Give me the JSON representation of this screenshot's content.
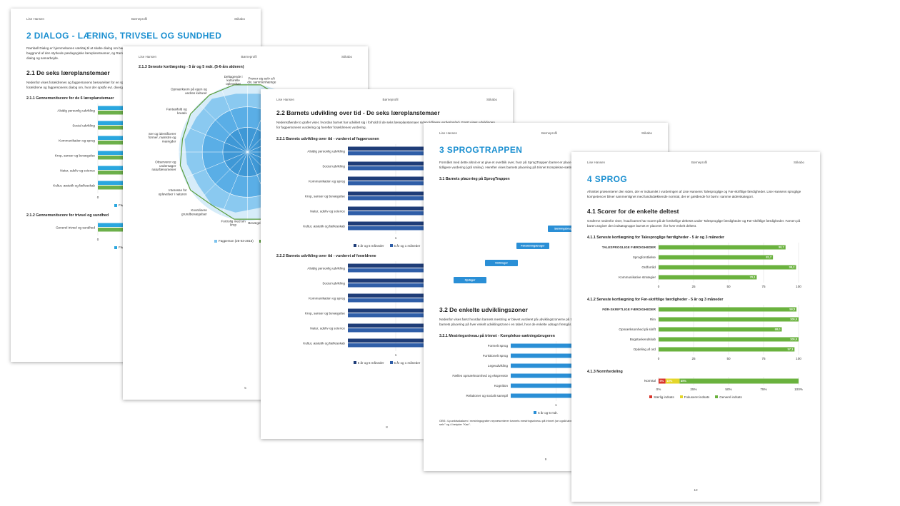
{
  "pages": [
    {
      "header": [
        "Lise Hansen",
        "Børneprofil",
        "Stikabo"
      ],
      "blocks": [
        {
          "type": "h1",
          "text": "2 DIALOG - LÆRING, TRIVSEL OG SUNDHED"
        },
        {
          "type": "p",
          "text": "Rambøll Dialog er hjemmebanes værktøj til at skabe dialog om barnets trivsel, læring, udvikling og dannelse. Rambøll Dialog 2015 blevet revideret på baggrund af den styrkede pædagogiske læreplansteamer, og Rambøll har videreudviklet materialet til relationer for at sikre et bedre grundlag for dialog og samarbejde."
        },
        {
          "type": "h2",
          "text": "2.1 De seks læreplanstemaer"
        },
        {
          "type": "p",
          "text": "Nedenfor vises forældrenes og fagpersonens besvarelser for en spindelsvævsgraf, som viser, hvad der er svaret på de enkelte spørgsmål, således til forældrene og fagpersonens dialog om, hvor der opstår evt. divergerende vurderinger."
        },
        {
          "type": "h3",
          "text": "2.1.1 Gennemsnitscore for de 6 læreplanstemaer"
        },
        {
          "type": "hbar",
          "legend": true,
          "categories": [
            "Alsidig personlig udvikling",
            "Social udvikling",
            "Kommunikation og sprog",
            "Krop, sanser og bevægelse",
            "Natur, udeliv og science",
            "Kultur, æstetik og fællesskab"
          ],
          "series": [
            {
              "name": "Fagperson",
              "color": "#2aa7df",
              "values": [
                2.5,
                2.6,
                2.4,
                2.7,
                2.5,
                2.6
              ]
            },
            {
              "name": "Forældre",
              "color": "#6cb04a",
              "values": [
                2.6,
                2.5,
                2.6,
                2.6,
                2.4,
                2.5
              ]
            }
          ],
          "xlim": [
            0,
            3
          ],
          "xticks": [
            0,
            1,
            2,
            3
          ]
        },
        {
          "type": "h3",
          "text": "2.1.2 Gennemsnitscore for trivsel og sundhed"
        },
        {
          "type": "hbar",
          "legend": true,
          "categories": [
            "Generel trivsel og sundhed"
          ],
          "series": [
            {
              "name": "Fagperson",
              "color": "#2aa7df",
              "values": [
                2.6
              ]
            },
            {
              "name": "Forældre",
              "color": "#6cb04a",
              "values": [
                2.5
              ]
            }
          ],
          "xlim": [
            0,
            3
          ],
          "xticks": [
            0,
            1,
            2,
            3
          ]
        }
      ]
    },
    {
      "header": [
        "Lise Hansen",
        "Børneprofil",
        "Stikabo"
      ],
      "page_number": "5",
      "blocks": [
        {
          "type": "h3",
          "text": "2.1.3 Seneste kortlægning - 5 år og 5 mdr. (5-6-års alderen)"
        },
        {
          "type": "radar",
          "legend": true,
          "categories": [
            "Prøver sig selv af i div. sammenhænge",
            null,
            null,
            null,
            null,
            null,
            null,
            "Bevægelsesglæde",
            "Fortrolig med sin krop",
            "Koordinere grundbevægelser",
            "Interesse for oplevelser i naturen",
            "Observerer og undersøger naturfænomener",
            "Ser og identificerer former, mønstre og mængder",
            "Fantasifuld og kreativ",
            "Opmærksom på egen og andres kulturer",
            "Deltagende i kulturelle oplevelser"
          ],
          "series": [
            {
              "name": "Fagperson (25-03-2015)",
              "color": "#7cc3ee",
              "values": [
                2.6,
                2.7,
                2.6,
                2.7,
                2.6,
                2.7,
                2.6,
                2.5,
                2.7,
                2.8,
                2.6,
                2.7,
                2.8,
                2.7,
                2.8,
                2.6
              ]
            },
            {
              "name": "Forældre",
              "color": "#5a9e3c",
              "values": [
                3,
                2.8,
                3,
                3,
                2.9,
                3,
                3,
                3,
                3,
                2.8,
                3,
                3,
                2.9,
                3,
                3,
                3
              ]
            }
          ],
          "rlim": [
            0,
            3
          ]
        }
      ]
    },
    {
      "header": [
        "Lise Hansen",
        "Børneprofil",
        "Stikabo"
      ],
      "page_number": "8",
      "blocks": [
        {
          "type": "h2",
          "text": "2.2 Barnets udvikling over tid - De seks læreplanstemaer"
        },
        {
          "type": "p",
          "text": "Nedenstående to grafer viser, hvordan barnet har udviklet sig i forhold til de seks læreplanstemaer siden tidligere vurdering(er). Først vises udviklingen for fagpersonens vurdering og herefter forældrenes vurdering."
        },
        {
          "type": "h3",
          "text": "2.2.1 Barnets udvikling over tid - vurderet af fagpersonen"
        },
        {
          "type": "hbar",
          "legend": true,
          "categories": [
            "Alsidig personlig udvikling",
            "Social udvikling",
            "Kommunikation og sprog",
            "Krop, sanser og bevægelse",
            "Natur, udeliv og science",
            "Kultur, æstetik og fællesskab"
          ],
          "series": [
            {
              "name": "5 år og 5 måneder",
              "color": "#1f3d78",
              "values": [
                2.8,
                2.9,
                2.8,
                2.9,
                2.8,
                2.9
              ]
            },
            {
              "name": "5 år og 1 måneder",
              "color": "#2f5ea8",
              "values": [
                2.6,
                1.7,
                2.6,
                1.7,
                2.0,
                2.4
              ],
              "value_labels": [
                null,
                "1,7",
                null,
                "1,7",
                "2,0",
                null
              ]
            }
          ],
          "xlim": [
            0,
            3
          ],
          "xticks": [
            1,
            2,
            3
          ]
        },
        {
          "type": "h3",
          "text": "2.2.2 Barnets udvikling over tid - vurderet af forældrene"
        },
        {
          "type": "hbar",
          "legend": true,
          "categories": [
            "Alsidig personlig udvikling",
            "Social udvikling",
            "Kommunikation og sprog",
            "Krop, sanser og bevægelse",
            "Natur, udeliv og science",
            "Kultur, æstetik og fællesskab"
          ],
          "series": [
            {
              "name": "5 år og 5 måneder",
              "color": "#1f3d78",
              "values": [
                2.8,
                2.9,
                2.8,
                2.9,
                2.8,
                2.9
              ]
            },
            {
              "name": "5 år og 1 måneder",
              "color": "#2f5ea8",
              "values": [
                2.6,
                1.8,
                2.7,
                2.6,
                1.7,
                2.6
              ],
              "value_labels": [
                null,
                "1,8",
                null,
                null,
                "1,7",
                null
              ]
            }
          ],
          "xlim": [
            0,
            3
          ],
          "xticks": [
            1,
            2,
            3
          ]
        }
      ]
    },
    {
      "header": [
        "Lise Hansen",
        "Børneprofil",
        "Stikabo"
      ],
      "page_number": "9",
      "blocks": [
        {
          "type": "h1",
          "text": "3 SPROGTRAPPEN"
        },
        {
          "type": "p",
          "text": "Formålet med dette afsnit er at give et overblik over, hvor på SprogTrappen barnet er placeret ud fra seneste vurdering (blå smiley) samt eventuel tidligere vurdering (grå smiley). Herefter vises barnets placering på trinnet Komplekse-sætningsbrugeren."
        },
        {
          "type": "h3",
          "text": "3.1 Barnets placering på SprogTrappen"
        },
        {
          "type": "steps",
          "steps": [
            "Opdager",
            "Ordbruger",
            "Førsætningsbruger",
            "Sætningsbruger"
          ]
        },
        {
          "type": "h2",
          "text": "3.2 De enkelte udviklingszoner"
        },
        {
          "type": "p",
          "text": "Nedenfor vises først hvordan barnets mestring er blevet vurderet på udviklingszonerne på trinnet Komplekse-sætningsbrugeren. Herefter vises barnets placering på hver enkelt udviklingszone i en tabel, hvor de enkelte udsagn fremgår."
        },
        {
          "type": "h3",
          "text": "3.2.1 Mestringsniveau på trinnet - Komplekse-sætningsbrugeren"
        },
        {
          "type": "hbar",
          "legend": true,
          "categories": [
            "Formelt sprog",
            "Funktionelt sprog",
            "Legeudvikling",
            "Fælles opmærksomhed og ekspressiv",
            "Kognition",
            "Relationer og socialt samspil"
          ],
          "series": [
            {
              "name": "5 år og 5 mdr.",
              "color": "#2a8fd6",
              "values": [
                3,
                3,
                3,
                3,
                3,
                2.0
              ],
              "value_labels": [
                null,
                null,
                null,
                null,
                null,
                "2,0"
              ]
            }
          ],
          "xlim": [
            0,
            3
          ],
          "xticks": [
            1,
            2,
            3
          ]
        },
        {
          "type": "note",
          "text": "OBS: 4-punktsskalaen i mestringsgrafen repræsenterer barnets mestringsniveau på trinnet (se også tabellen), hvor 2 betyder \"Kan med hjælp\", 3 betyder \"Kan næsten selv\" og 4 betyder \"Kan\"."
        }
      ]
    },
    {
      "header": [
        "Lise Hansen",
        "Børneprofil",
        "Stikabo"
      ],
      "page_number": "10",
      "blocks": [
        {
          "type": "h1",
          "text": "4 SPROG"
        },
        {
          "type": "p",
          "text": "Afsnittet præsenterer den viden, der er indsamlet i vurderingen af Lise Hansens Talesproglige og Før-skriftlige færdigheder. Lise Hansens sproglige kompetencer bliver sammenlignet med landsdækkende normtal, der er gældende for børn i samme alderskategori."
        },
        {
          "type": "h2",
          "text": "4.1 Scorer for de enkelte deltest"
        },
        {
          "type": "p",
          "text": "Graferne nedenfor viser, hvad barnet har scoret på de forskellige deltests under Talesproglige færdigheder og Før-skriftlige færdigheder. Farven på baren angiver den indsatsgruppe barnet er placeret i for hver enkelt deltest."
        },
        {
          "type": "h3",
          "text": "4.1.1 Seneste kortlægning for Talesproglige færdigheder - 5 år og 3 måneder"
        },
        {
          "type": "hbar",
          "categories": [
            "TALESPROGLIGE FÆRDIGHEDER",
            "Sprogforståelse",
            "Ordforråd",
            "Kommunikative strategier"
          ],
          "series": [
            {
              "color": "#6ab23e",
              "values": [
                90.7,
                81.7,
                98.2,
                70.1
              ],
              "value_labels": [
                "90,7",
                "81,7",
                "98,2",
                "70,1"
              ]
            }
          ],
          "xlim": [
            0,
            100
          ],
          "xticks": [
            0,
            25,
            50,
            75,
            100
          ]
        },
        {
          "type": "h3",
          "text": "4.1.2 Seneste kortlægning for Før-skriftlige færdigheder - 5 år og 3 måneder"
        },
        {
          "type": "hbar",
          "categories": [
            "FØR-SKRIFTLIGE FÆRDIGHEDER",
            "Rim",
            "Opmærksomhed på skrift",
            "Bogstavkendskab",
            "Opdeling af ord"
          ],
          "series": [
            {
              "color": "#6ab23e",
              "values": [
                98.5,
                100.0,
                88.0,
                100.0,
                97.1
              ],
              "value_labels": [
                "98,5",
                "100,0",
                "88,0",
                "100,0",
                "97,1"
              ]
            }
          ],
          "xlim": [
            0,
            100
          ],
          "xticks": [
            0,
            25,
            50,
            75,
            100
          ]
        },
        {
          "type": "h3",
          "text": "4.1.3 Normfordeling"
        },
        {
          "type": "stacked",
          "legend": true,
          "categories": [
            "Normtal"
          ],
          "series": [
            {
              "name": "Særlig indsats",
              "color": "#d9342b",
              "values": [
                5
              ],
              "value_labels": [
                "5%"
              ]
            },
            {
              "name": "Fokuseret indsats",
              "color": "#e4d62a",
              "values": [
                10
              ],
              "value_labels": [
                "10%"
              ]
            },
            {
              "name": "Generel indsats",
              "color": "#6ab23e",
              "values": [
                85
              ],
              "value_labels": [
                "85%"
              ]
            }
          ],
          "xlim": [
            0,
            100
          ],
          "xticks": [
            {
              "value": 0,
              "label": "0%"
            },
            {
              "value": 25,
              "label": "25%"
            },
            {
              "value": 50,
              "label": "50%"
            },
            {
              "value": 75,
              "label": "75%"
            },
            {
              "value": 100,
              "label": "100%"
            }
          ]
        }
      ]
    }
  ]
}
